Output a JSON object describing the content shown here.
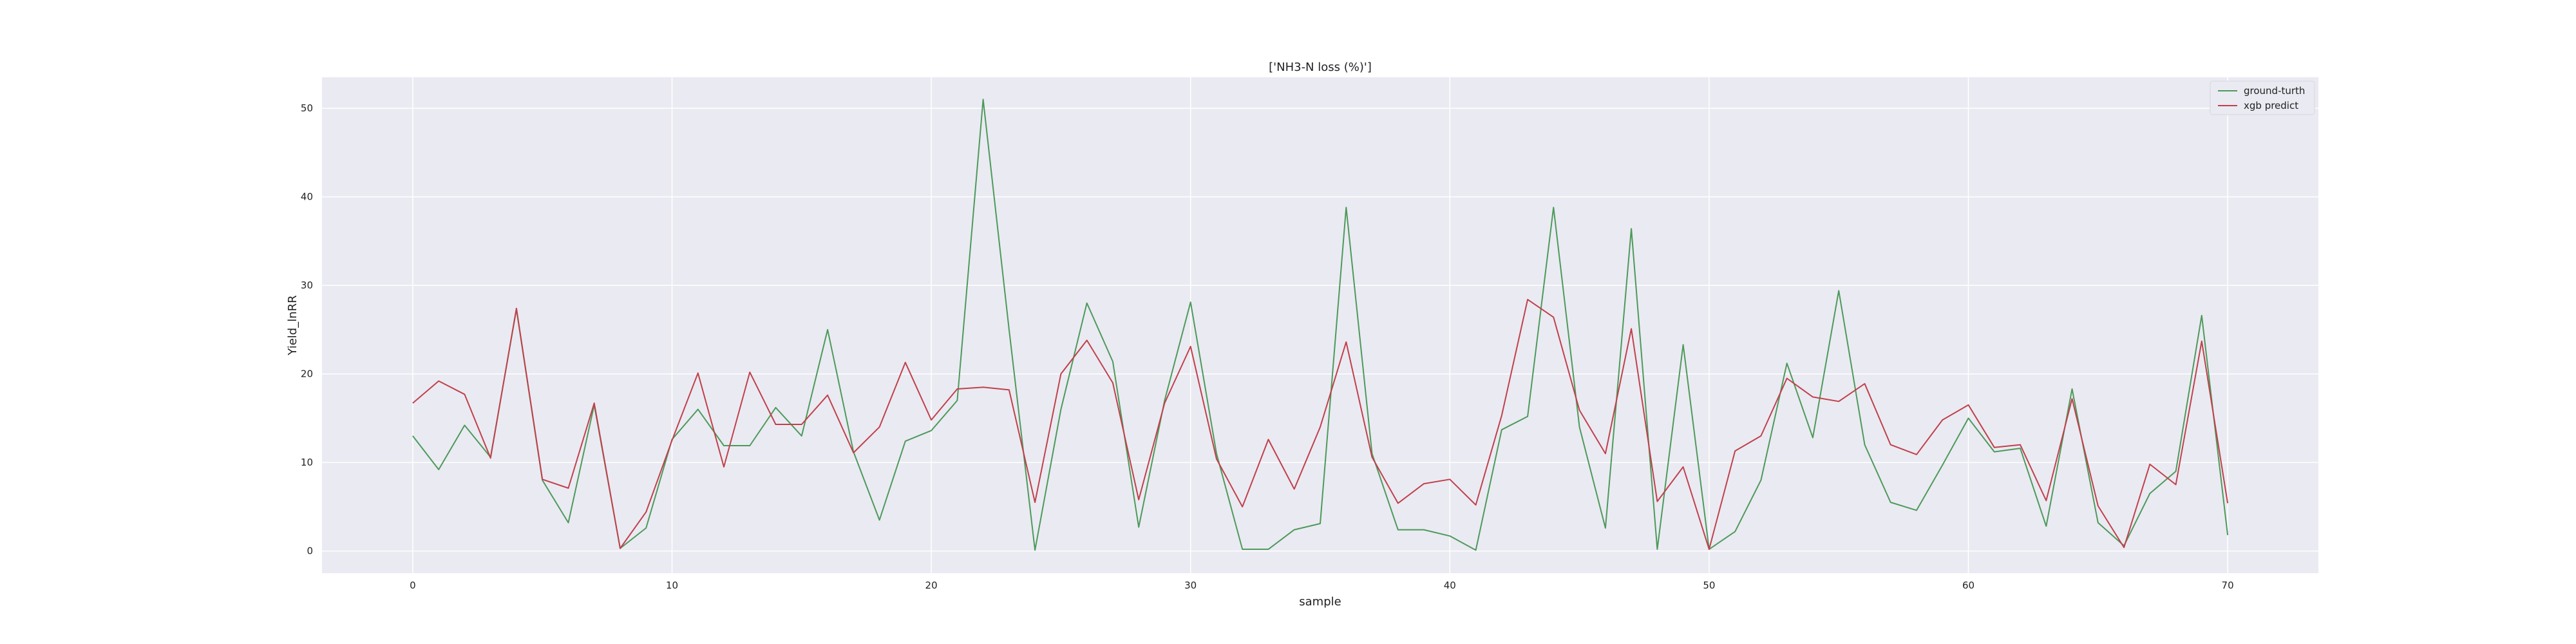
{
  "chart_data": {
    "type": "line",
    "title": "['NH3-N loss (%)']",
    "xlabel": "sample",
    "ylabel": "Yield_lnRR",
    "xlim": [
      -3.5,
      73.5
    ],
    "ylim": [
      -2.5,
      53.5
    ],
    "xticks": [
      0,
      10,
      20,
      30,
      40,
      50,
      60,
      70
    ],
    "yticks": [
      0,
      10,
      20,
      30,
      40,
      50
    ],
    "grid": true,
    "legend_position": "top-right",
    "x": [
      0,
      1,
      2,
      3,
      4,
      5,
      6,
      7,
      8,
      9,
      10,
      11,
      12,
      13,
      14,
      15,
      16,
      17,
      18,
      19,
      20,
      21,
      22,
      23,
      24,
      25,
      26,
      27,
      28,
      29,
      30,
      31,
      32,
      33,
      34,
      35,
      36,
      37,
      38,
      39,
      40,
      41,
      42,
      43,
      44,
      45,
      46,
      47,
      48,
      49,
      50,
      51,
      52,
      53,
      54,
      55,
      56,
      57,
      58,
      59,
      60,
      61,
      62,
      63,
      64,
      65,
      66,
      67,
      68,
      69,
      70
    ],
    "series": [
      {
        "name": "ground-turth",
        "color": "#4c9a5a",
        "values": [
          13.0,
          9.2,
          14.2,
          10.6,
          27.3,
          8.0,
          3.2,
          16.5,
          0.3,
          2.6,
          12.6,
          16.0,
          11.9,
          11.9,
          16.2,
          13.0,
          25.0,
          11.2,
          3.5,
          12.4,
          13.6,
          17.0,
          51.0,
          25.0,
          0.1,
          16.0,
          28.0,
          21.4,
          2.7,
          17.0,
          28.1,
          11.0,
          0.2,
          0.2,
          2.4,
          3.1,
          38.8,
          11.0,
          2.4,
          2.4,
          1.7,
          0.1,
          13.7,
          15.2,
          38.8,
          14.0,
          2.6,
          36.4,
          0.2,
          23.3,
          0.2,
          2.2,
          8.0,
          21.2,
          12.8,
          29.4,
          12.0,
          5.5,
          4.6,
          9.7,
          15.0,
          11.2,
          11.6,
          2.8,
          18.3,
          3.2,
          0.6,
          6.5,
          9.0,
          26.6,
          1.8
        ]
      },
      {
        "name": "xgb predict",
        "color": "#c0404b",
        "values": [
          16.7,
          19.2,
          17.7,
          10.5,
          27.4,
          8.1,
          7.1,
          16.7,
          0.3,
          4.4,
          12.5,
          20.1,
          9.5,
          20.2,
          14.3,
          14.3,
          17.6,
          11.1,
          14.0,
          21.3,
          14.8,
          18.3,
          18.5,
          18.2,
          5.5,
          20.0,
          23.8,
          19.0,
          5.8,
          16.7,
          23.1,
          10.4,
          5.0,
          12.6,
          7.0,
          14.0,
          23.6,
          10.6,
          5.4,
          7.6,
          8.1,
          5.2,
          15.3,
          28.4,
          26.4,
          15.9,
          11.0,
          25.1,
          5.6,
          9.5,
          0.2,
          11.3,
          13.0,
          19.5,
          17.4,
          16.9,
          18.9,
          12.0,
          10.9,
          14.8,
          16.5,
          11.7,
          12.0,
          5.7,
          17.2,
          5.1,
          0.4,
          9.8,
          7.5,
          23.7,
          5.4
        ]
      }
    ]
  },
  "colors": {
    "plot_background": "#eaeaf2",
    "grid": "#ffffff"
  }
}
